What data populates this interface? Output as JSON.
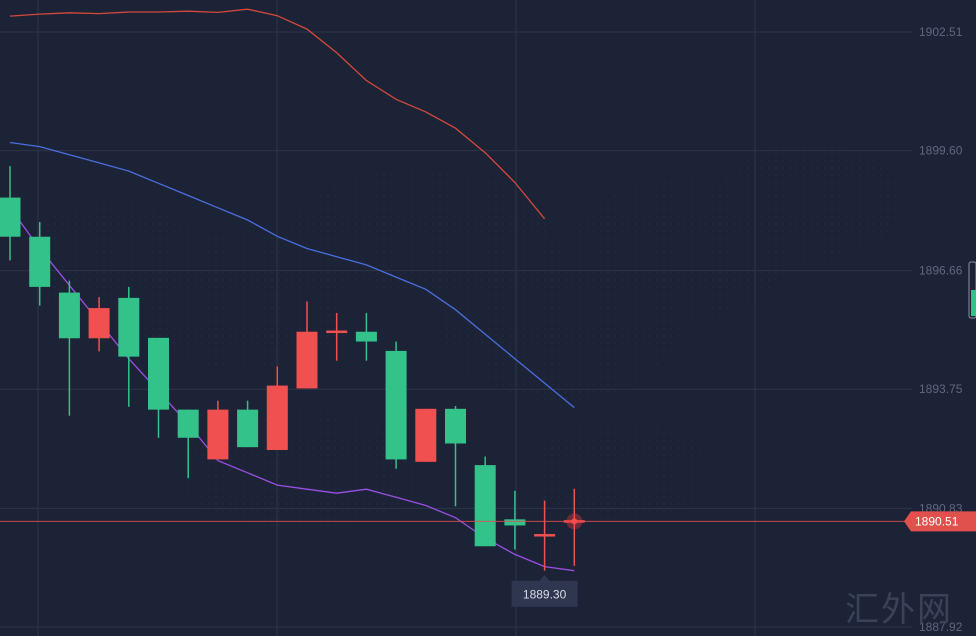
{
  "chart_data": {
    "type": "candlestick",
    "y_axis": {
      "ticks": [
        "1902.51",
        "1899.60",
        "1896.66",
        "1893.75",
        "1890.83",
        "1887.92"
      ],
      "ylim": [
        1887.92,
        1903.5
      ]
    },
    "grid": true,
    "candles": [
      {
        "open": 1898.45,
        "close": 1897.49,
        "high": 1899.22,
        "low": 1896.91,
        "color": "green"
      },
      {
        "open": 1897.49,
        "close": 1896.26,
        "high": 1897.85,
        "low": 1895.8,
        "color": "green"
      },
      {
        "open": 1896.12,
        "close": 1895.0,
        "high": 1896.41,
        "low": 1893.1,
        "color": "green"
      },
      {
        "open": 1895.0,
        "close": 1895.74,
        "high": 1896.01,
        "low": 1894.68,
        "color": "red"
      },
      {
        "open": 1895.99,
        "close": 1894.55,
        "high": 1896.26,
        "low": 1893.32,
        "color": "green"
      },
      {
        "open": 1895.01,
        "close": 1893.25,
        "high": 1895.01,
        "low": 1892.56,
        "color": "green"
      },
      {
        "open": 1893.25,
        "close": 1892.56,
        "high": 1893.25,
        "low": 1891.57,
        "color": "green"
      },
      {
        "open": 1892.03,
        "close": 1893.25,
        "high": 1893.47,
        "low": 1892.03,
        "color": "red"
      },
      {
        "open": 1892.33,
        "close": 1893.25,
        "high": 1893.47,
        "low": 1892.33,
        "color": "green"
      },
      {
        "open": 1892.26,
        "close": 1893.84,
        "high": 1894.31,
        "low": 1892.26,
        "color": "red"
      },
      {
        "open": 1893.77,
        "close": 1895.16,
        "high": 1895.9,
        "low": 1893.77,
        "color": "red"
      },
      {
        "open": 1895.16,
        "close": 1895.16,
        "high": 1895.62,
        "low": 1894.45,
        "color": "red"
      },
      {
        "open": 1895.16,
        "close": 1894.92,
        "high": 1895.62,
        "low": 1894.45,
        "color": "green"
      },
      {
        "open": 1894.69,
        "close": 1892.03,
        "high": 1894.92,
        "low": 1891.8,
        "color": "green"
      },
      {
        "open": 1893.27,
        "close": 1891.97,
        "high": 1893.27,
        "low": 1891.97,
        "color": "red"
      },
      {
        "open": 1893.27,
        "close": 1892.42,
        "high": 1893.34,
        "low": 1890.88,
        "color": "green"
      },
      {
        "open": 1891.89,
        "close": 1889.9,
        "high": 1892.1,
        "low": 1889.9,
        "color": "green"
      },
      {
        "open": 1890.56,
        "close": 1890.41,
        "high": 1891.26,
        "low": 1889.82,
        "color": "green"
      },
      {
        "open": 1890.17,
        "close": 1890.17,
        "high": 1891.02,
        "low": 1889.3,
        "color": "red"
      },
      {
        "open": 1890.51,
        "close": 1890.51,
        "high": 1891.31,
        "low": 1889.42,
        "color": "red"
      }
    ],
    "indicators": [
      {
        "color": "#d2493c",
        "values": [
          1902.9,
          1902.95,
          1902.98,
          1902.96,
          1903.0,
          1903.0,
          1903.02,
          1902.99,
          1903.07,
          1902.91,
          1902.58,
          1902.0,
          1901.32,
          1900.86,
          1900.55,
          1900.15,
          1899.55,
          1898.82,
          1897.93
        ]
      },
      {
        "color": "#4a6ee0",
        "values": [
          1899.8,
          1899.7,
          1899.5,
          1899.3,
          1899.1,
          1898.8,
          1898.5,
          1898.2,
          1897.9,
          1897.5,
          1897.2,
          1897.0,
          1896.8,
          1896.5,
          1896.2,
          1895.7,
          1895.1,
          1894.5,
          1893.9,
          1893.3
        ]
      },
      {
        "color": "#9a4fe3",
        "values": [
          1898.2,
          1897.2,
          1896.3,
          1895.4,
          1894.5,
          1893.7,
          1892.9,
          1892.0,
          1891.7,
          1891.4,
          1891.3,
          1891.2,
          1891.3,
          1891.1,
          1890.9,
          1890.6,
          1890.1,
          1889.7,
          1889.4,
          1889.3
        ]
      }
    ],
    "current_price": "1890.51",
    "low_marker": "1889.30",
    "watermark": "汇外网",
    "colors": {
      "background": "#1d2336",
      "grid": "#2c3449",
      "up": "#f05050",
      "down": "#33c28a",
      "price_line": "#e0504c"
    }
  }
}
